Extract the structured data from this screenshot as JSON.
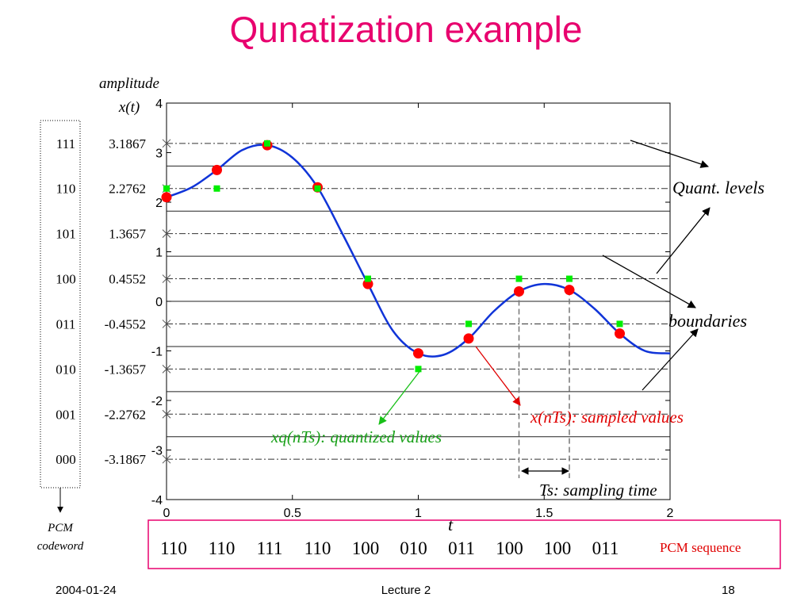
{
  "slide": {
    "title": "Qunatization example",
    "footer_date": "2004-01-24",
    "footer_center": "Lecture 2",
    "page_number": "18"
  },
  "chart_data": {
    "type": "line",
    "title": "",
    "xlabel": "t",
    "ylabel_line1": "amplitude",
    "ylabel_line2": "x(t)",
    "xlim": [
      0,
      2
    ],
    "ylim": [
      -4,
      4
    ],
    "x_ticks": [
      0,
      0.5,
      1,
      1.5,
      2
    ],
    "x_tick_labels": [
      "0",
      "0.5",
      "1",
      "1.5",
      "2"
    ],
    "y_ticks": [
      -4,
      -3,
      -2,
      -1,
      0,
      1,
      2,
      3,
      4
    ],
    "y_tick_labels": [
      "-4",
      "-3",
      "-2",
      "-1",
      "0",
      "1",
      "2",
      "3",
      "4"
    ],
    "quantization_levels": [
      3.1867,
      2.2762,
      1.3657,
      0.4552,
      -0.4552,
      -1.3657,
      -2.2762,
      -3.1867
    ],
    "level_labels": [
      "3.1867",
      "2.2762",
      "1.3657",
      "0.4552",
      "-0.4552",
      "-1.3657",
      "-2.2762",
      "-3.1867"
    ],
    "pcm_codewords": [
      "111",
      "110",
      "101",
      "100",
      "011",
      "010",
      "001",
      "000"
    ],
    "boundaries": [
      2.731,
      1.821,
      0.911,
      0,
      -0.911,
      -1.821,
      -2.731
    ],
    "signal_curve": {
      "x": [
        0,
        0.1,
        0.2,
        0.3,
        0.4,
        0.5,
        0.6,
        0.7,
        0.8,
        0.9,
        1.0,
        1.1,
        1.2,
        1.3,
        1.4,
        1.5,
        1.6,
        1.7,
        1.8,
        1.9,
        2.0
      ],
      "y": [
        2.1,
        2.3,
        2.65,
        3.05,
        3.15,
        2.9,
        2.3,
        1.35,
        0.35,
        -0.6,
        -1.05,
        -1.08,
        -0.75,
        -0.2,
        0.2,
        0.35,
        0.23,
        -0.15,
        -0.65,
        -1.0,
        -1.05
      ]
    },
    "series": [
      {
        "name": "x(nTs): sampled values",
        "x": [
          0,
          0.2,
          0.4,
          0.6,
          0.8,
          1.0,
          1.2,
          1.4,
          1.6,
          1.8
        ],
        "y": [
          2.1,
          2.65,
          3.15,
          2.3,
          0.35,
          -1.05,
          -0.75,
          0.2,
          0.23,
          -0.65
        ],
        "color": "#ff0000"
      },
      {
        "name": "xq(nTs): quantized values",
        "x": [
          0,
          0.2,
          0.4,
          0.6,
          0.8,
          1.0,
          1.2,
          1.4,
          1.6,
          1.8
        ],
        "y": [
          2.2762,
          2.2762,
          3.1867,
          2.2762,
          0.4552,
          -1.3657,
          -0.4552,
          0.4552,
          0.4552,
          -0.4552
        ],
        "color": "#00ee00"
      }
    ],
    "annotations": {
      "quant_levels": "Quant. levels",
      "boundaries": "boundaries",
      "sampled": "x(nTs): sampled values",
      "quantized": "xq(nTs): quantized values",
      "sampling_time": "Ts: sampling time",
      "pcm_caption_line1": "PCM",
      "pcm_caption_line2": "codeword",
      "pcm_sequence_label": "PCM sequence"
    },
    "pcm_sequence": [
      "110",
      "110",
      "111",
      "110",
      "100",
      "010",
      "011",
      "100",
      "100",
      "011"
    ],
    "colors": {
      "title": "#e8006e",
      "curve": "#1034d8",
      "sampled": "#ff0000",
      "quantized": "#00ee00",
      "pcm_box": "#e8006e",
      "sampled_label": "#e00000",
      "quantized_label": "#18a018"
    }
  }
}
